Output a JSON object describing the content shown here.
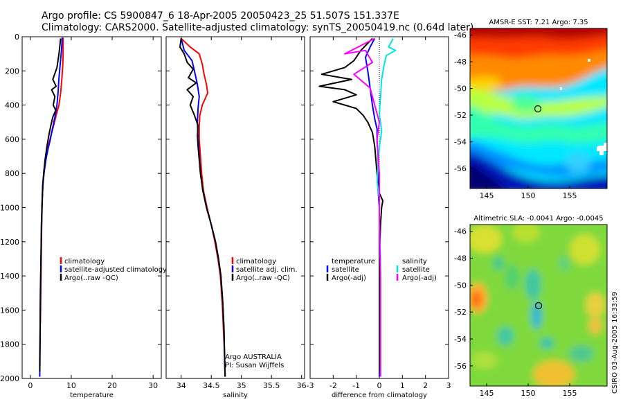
{
  "title": {
    "line1": "Argo profile: CS 5900847_6 18-Apr-2005 20050423_25 51.507S 151.337E",
    "line2": "Climatology: CARS2000. Satellite-adjusted climatology: synTS_20050419.nc (0.64d later)"
  },
  "side_label": "CSIRO 03-Aug-2005 16:33:59",
  "credit": {
    "line1": "Argo AUSTRALIA",
    "line2": "PI: Susan Wijffels"
  },
  "colors": {
    "climatology": "#ff0000",
    "satellite": "#0000ff",
    "argo": "#000000",
    "sal_sat": "#00e5e5",
    "sal_argo": "#ff00ff",
    "grid": "#000000"
  },
  "chart_data": [
    {
      "type": "line",
      "id": "temperature",
      "xlabel": "temperature",
      "ylabel": "",
      "xlim": [
        -2,
        32
      ],
      "ylim": [
        2000,
        0
      ],
      "xticks": [
        0,
        10,
        20,
        30
      ],
      "yticks": [
        0,
        200,
        400,
        600,
        800,
        1000,
        1200,
        1400,
        1600,
        1800,
        2000
      ],
      "legend": [
        "climatology",
        "satellite-adjusted climatology",
        "Argo(..raw -QC)"
      ],
      "series": [
        {
          "name": "climatology",
          "color": "#ff0000",
          "points": [
            [
              8.0,
              5
            ],
            [
              8.0,
              60
            ],
            [
              8.0,
              120
            ],
            [
              7.9,
              180
            ],
            [
              7.7,
              250
            ],
            [
              7.4,
              330
            ],
            [
              7.0,
              400
            ],
            [
              6.3,
              460
            ],
            [
              5.7,
              520
            ],
            [
              5.0,
              580
            ],
            [
              4.4,
              640
            ],
            [
              3.9,
              700
            ],
            [
              3.5,
              760
            ],
            [
              3.2,
              830
            ],
            [
              3.0,
              900
            ],
            [
              2.85,
              1000
            ],
            [
              2.7,
              1200
            ],
            [
              2.6,
              1400
            ],
            [
              2.5,
              1600
            ],
            [
              2.45,
              1680
            ]
          ]
        },
        {
          "name": "satellite",
          "color": "#0000ff",
          "points": [
            [
              7.8,
              5
            ],
            [
              7.6,
              80
            ],
            [
              7.3,
              160
            ],
            [
              7.0,
              240
            ],
            [
              6.8,
              320
            ],
            [
              6.5,
              400
            ],
            [
              6.0,
              470
            ],
            [
              5.4,
              540
            ],
            [
              4.9,
              600
            ],
            [
              4.3,
              660
            ],
            [
              3.8,
              720
            ],
            [
              3.4,
              790
            ],
            [
              3.1,
              860
            ],
            [
              2.9,
              950
            ],
            [
              2.75,
              1100
            ],
            [
              2.6,
              1300
            ],
            [
              2.5,
              1500
            ],
            [
              2.4,
              1700
            ],
            [
              2.35,
              1900
            ],
            [
              2.3,
              1990
            ]
          ]
        },
        {
          "name": "argo",
          "color": "#000000",
          "points": [
            [
              7.4,
              10
            ],
            [
              7.0,
              100
            ],
            [
              6.5,
              180
            ],
            [
              5.5,
              250
            ],
            [
              6.3,
              290
            ],
            [
              5.2,
              310
            ],
            [
              6.0,
              350
            ],
            [
              5.6,
              400
            ],
            [
              6.2,
              430
            ],
            [
              5.5,
              470
            ],
            [
              5.0,
              520
            ],
            [
              4.5,
              580
            ],
            [
              4.0,
              650
            ],
            [
              3.6,
              720
            ],
            [
              3.3,
              790
            ],
            [
              3.0,
              870
            ],
            [
              2.9,
              950
            ],
            [
              2.7,
              1100
            ],
            [
              2.6,
              1300
            ],
            [
              2.45,
              1500
            ],
            [
              2.4,
              1700
            ],
            [
              2.3,
              1900
            ],
            [
              2.3,
              1960
            ]
          ]
        }
      ]
    },
    {
      "type": "line",
      "id": "salinity",
      "xlabel": "salinity",
      "ylabel": "",
      "xlim": [
        33.75,
        36.05
      ],
      "ylim": [
        2000,
        0
      ],
      "xticks": [
        34,
        34.5,
        35,
        35.5,
        36
      ],
      "legend": [
        "climatology",
        "satellite adj. clim.",
        "Argo(..raw -QC)"
      ],
      "series": [
        {
          "name": "climatology",
          "color": "#ff0000",
          "points": [
            [
              34.0,
              10
            ],
            [
              34.15,
              60
            ],
            [
              34.3,
              100
            ],
            [
              34.35,
              160
            ],
            [
              34.38,
              220
            ],
            [
              34.42,
              280
            ],
            [
              34.44,
              330
            ],
            [
              34.35,
              400
            ],
            [
              34.31,
              460
            ],
            [
              34.3,
              520
            ],
            [
              34.3,
              600
            ],
            [
              34.32,
              700
            ],
            [
              34.34,
              800
            ],
            [
              34.37,
              900
            ],
            [
              34.43,
              1000
            ],
            [
              34.5,
              1100
            ],
            [
              34.56,
              1200
            ],
            [
              34.61,
              1300
            ],
            [
              34.65,
              1400
            ],
            [
              34.68,
              1550
            ],
            [
              34.7,
              1700
            ],
            [
              34.72,
              1850
            ],
            [
              34.73,
              1990
            ]
          ]
        },
        {
          "name": "satellite",
          "color": "#0000ff",
          "points": [
            [
              34.0,
              10
            ],
            [
              34.05,
              80
            ],
            [
              34.18,
              140
            ],
            [
              34.22,
              200
            ],
            [
              34.27,
              280
            ],
            [
              34.3,
              350
            ],
            [
              34.28,
              420
            ],
            [
              34.27,
              500
            ],
            [
              34.28,
              600
            ],
            [
              34.3,
              700
            ],
            [
              34.32,
              800
            ],
            [
              34.36,
              900
            ],
            [
              34.42,
              1000
            ],
            [
              34.5,
              1100
            ],
            [
              34.57,
              1200
            ],
            [
              34.62,
              1300
            ],
            [
              34.66,
              1400
            ],
            [
              34.69,
              1550
            ],
            [
              34.71,
              1700
            ],
            [
              34.72,
              1850
            ],
            [
              34.73,
              1990
            ]
          ]
        },
        {
          "name": "argo",
          "color": "#000000",
          "points": [
            [
              34.0,
              10
            ],
            [
              33.98,
              60
            ],
            [
              34.05,
              100
            ],
            [
              34.1,
              150
            ],
            [
              34.2,
              190
            ],
            [
              34.12,
              240
            ],
            [
              34.25,
              270
            ],
            [
              34.1,
              310
            ],
            [
              34.2,
              350
            ],
            [
              34.15,
              400
            ],
            [
              34.22,
              460
            ],
            [
              34.28,
              520
            ],
            [
              34.27,
              580
            ],
            [
              34.28,
              640
            ],
            [
              34.3,
              720
            ],
            [
              34.32,
              800
            ],
            [
              34.36,
              900
            ],
            [
              34.42,
              1000
            ],
            [
              34.5,
              1100
            ],
            [
              34.57,
              1200
            ],
            [
              34.62,
              1300
            ],
            [
              34.66,
              1400
            ],
            [
              34.69,
              1550
            ],
            [
              34.71,
              1700
            ],
            [
              34.72,
              1850
            ],
            [
              34.73,
              1990
            ]
          ]
        }
      ]
    },
    {
      "type": "line",
      "id": "difference",
      "xlabel": "difference from climatology",
      "ylabel": "",
      "xlim": [
        -3,
        3
      ],
      "ylim": [
        2000,
        0
      ],
      "xticks": [
        -3,
        -2,
        -1,
        0,
        1,
        2,
        3
      ],
      "legend_temp": [
        "temperature",
        "satellite",
        "Argo(-adj)"
      ],
      "legend_sal": [
        "salinity",
        "satellite",
        "Argo(-adj)"
      ],
      "series": [
        {
          "name": "temperature satellite",
          "color": "#0000ff",
          "points": [
            [
              -0.2,
              10
            ],
            [
              -0.4,
              60
            ],
            [
              -0.6,
              120
            ],
            [
              -0.5,
              200
            ],
            [
              -0.4,
              300
            ],
            [
              -0.3,
              400
            ],
            [
              -0.2,
              480
            ],
            [
              -0.1,
              540
            ],
            [
              -0.1,
              620
            ],
            [
              -0.05,
              700
            ],
            [
              -0.05,
              800
            ],
            [
              -0.05,
              900
            ],
            [
              0.0,
              1000
            ],
            [
              0.0,
              1300
            ],
            [
              0.0,
              1600
            ],
            [
              0.0,
              1990
            ]
          ]
        },
        {
          "name": "temperature argo",
          "color": "#000000",
          "points": [
            [
              -0.3,
              10
            ],
            [
              -0.8,
              80
            ],
            [
              -1.1,
              140
            ],
            [
              -1.5,
              180
            ],
            [
              -2.5,
              220
            ],
            [
              -1.2,
              250
            ],
            [
              -2.6,
              290
            ],
            [
              -1.5,
              310
            ],
            [
              -1.0,
              340
            ],
            [
              -2.0,
              380
            ],
            [
              -1.0,
              420
            ],
            [
              -0.7,
              460
            ],
            [
              -0.5,
              500
            ],
            [
              -0.3,
              560
            ],
            [
              -0.2,
              640
            ],
            [
              -0.15,
              720
            ],
            [
              -0.1,
              800
            ],
            [
              -0.05,
              900
            ],
            [
              0.15,
              960
            ],
            [
              0.1,
              1000
            ],
            [
              0.05,
              1100
            ],
            [
              0.0,
              1300
            ],
            [
              0.0,
              1600
            ],
            [
              0.0,
              1960
            ]
          ]
        },
        {
          "name": "salinity satellite",
          "color": "#00e5e5",
          "points": [
            [
              0.6,
              10
            ],
            [
              0.4,
              60
            ],
            [
              0.7,
              80
            ],
            [
              0.3,
              110
            ],
            [
              0.2,
              170
            ],
            [
              0.1,
              250
            ],
            [
              0.05,
              350
            ],
            [
              0.0,
              450
            ],
            [
              0.1,
              550
            ],
            [
              0.0,
              650
            ],
            [
              -0.05,
              750
            ],
            [
              -0.1,
              850
            ],
            [
              0.0,
              950
            ],
            [
              0.0,
              1100
            ],
            [
              0.05,
              1300
            ],
            [
              0.05,
              1600
            ],
            [
              0.05,
              1990
            ]
          ]
        },
        {
          "name": "salinity argo",
          "color": "#ff00ff",
          "points": [
            [
              -0.2,
              10
            ],
            [
              -1.5,
              100
            ],
            [
              -0.6,
              80
            ],
            [
              -0.3,
              150
            ],
            [
              -1.1,
              220
            ],
            [
              -0.4,
              300
            ],
            [
              -0.2,
              400
            ],
            [
              0.0,
              500
            ],
            [
              -0.1,
              600
            ],
            [
              -0.05,
              700
            ],
            [
              0.0,
              800
            ],
            [
              0.0,
              900
            ],
            [
              0.0,
              1100
            ],
            [
              0.05,
              1400
            ],
            [
              0.05,
              1700
            ],
            [
              0.05,
              1990
            ]
          ]
        }
      ]
    },
    {
      "type": "heatmap",
      "id": "sst_map",
      "title": "AMSR-E SST: 7.21 Argo: 7.35",
      "xticks": [
        145,
        150,
        155
      ],
      "yticks": [
        -46,
        -48,
        -50,
        -52,
        -54,
        -56
      ],
      "xlim": [
        143,
        159.5
      ],
      "ylim": [
        -57.5,
        -45.5
      ],
      "marker": {
        "lon": 151.337,
        "lat": -51.507
      }
    },
    {
      "type": "heatmap",
      "id": "sla_map",
      "title": "Altimetric SLA: -0.0041 Argo: -0.0045",
      "xticks": [
        145,
        150,
        155
      ],
      "yticks": [
        -46,
        -48,
        -50,
        -52,
        -54,
        -56
      ],
      "xlim": [
        143,
        159.5
      ],
      "ylim": [
        -57.5,
        -45.5
      ],
      "marker": {
        "lon": 151.337,
        "lat": -51.507
      }
    }
  ]
}
